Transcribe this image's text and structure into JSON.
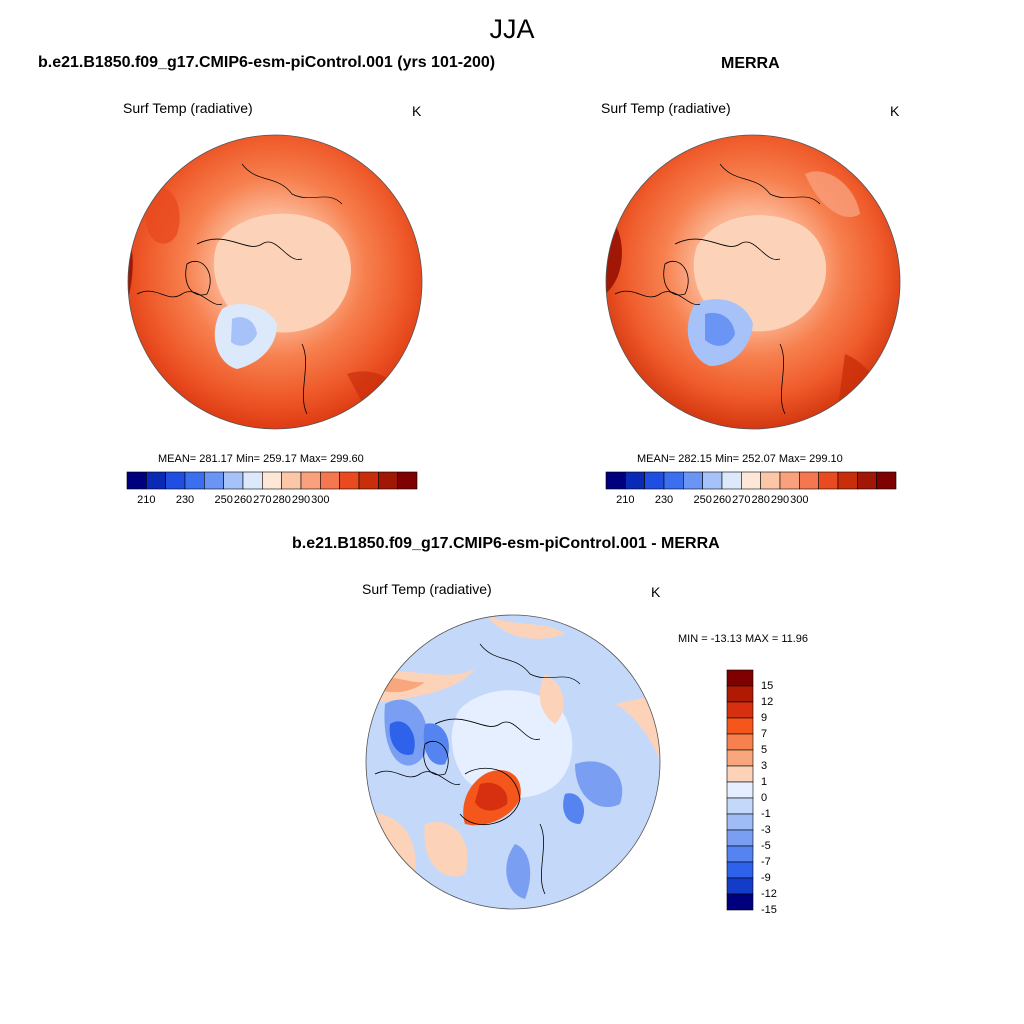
{
  "figure": {
    "title": "JJA"
  },
  "panels": [
    {
      "title": "b.e21.B1850.f09_g17.CMIP6-esm-piControl.001 (yrs 101-200)",
      "variable": "Surf Temp (radiative)",
      "units": "K",
      "stats": "MEAN= 281.17  Min= 259.17  Max= 299.60"
    },
    {
      "title": "MERRA",
      "variable": "Surf Temp (radiative)",
      "units": "K",
      "stats": "MEAN= 282.15  Min= 252.07  Max= 299.10"
    },
    {
      "title": "b.e21.B1850.f09_g17.CMIP6-esm-piControl.001 - MERRA",
      "variable": "Surf Temp (radiative)",
      "units": "K",
      "stats": "MIN = -13.13 MAX =  11.96"
    }
  ],
  "colorbar_abs": {
    "colors": [
      "#00007f",
      "#0a2ab5",
      "#1f4fe0",
      "#3b6ff0",
      "#6a95f5",
      "#a7c2f8",
      "#dce9fb",
      "#fde8d8",
      "#fcc7a9",
      "#f9a07c",
      "#f4774f",
      "#e94a1f",
      "#c92e0a",
      "#a01805",
      "#7f0000"
    ],
    "ticks": [
      "210",
      "230",
      "250",
      "260",
      "270",
      "280",
      "290",
      "300"
    ]
  },
  "colorbar_diff": {
    "colors": [
      "#7f0000",
      "#b01a03",
      "#d73010",
      "#f4561c",
      "#f7804f",
      "#f9a67c",
      "#fcd3b8",
      "#e6efff",
      "#c4d8fa",
      "#9fbcf6",
      "#7a9ff2",
      "#5583ef",
      "#2f62ea",
      "#133dc8",
      "#00007f"
    ],
    "ticks": [
      "15",
      "12",
      "9",
      "7",
      "5",
      "3",
      "1",
      "0",
      "-1",
      "-3",
      "-5",
      "-7",
      "-9",
      "-12",
      "-15"
    ]
  }
}
